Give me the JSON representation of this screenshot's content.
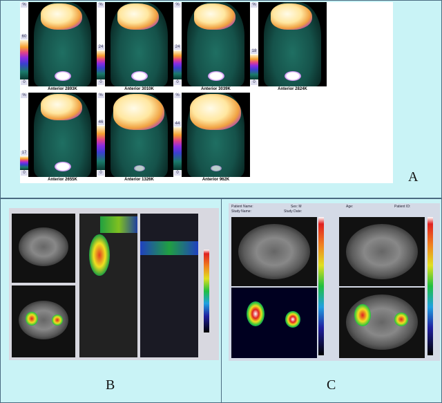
{
  "panel_a": {
    "label": "A",
    "scale_unit": "%",
    "scale_min": "0",
    "images": [
      {
        "caption": "Anterior 2893K",
        "scale_max": "60"
      },
      {
        "caption": "Anterior 3010K",
        "scale_max": "24"
      },
      {
        "caption": "Anterior 3039K",
        "scale_max": "24"
      },
      {
        "caption": "Anterior 2824K",
        "scale_max": "18"
      },
      {
        "caption": "Anterior 2655K",
        "scale_max": "17"
      },
      {
        "caption": "Anterior 1326K",
        "scale_max": "46"
      },
      {
        "caption": "Anterior 962K",
        "scale_max": "44"
      }
    ]
  },
  "panel_b": {
    "label": "B"
  },
  "panel_c": {
    "label": "C",
    "header": {
      "patient_name": "Patient Name:",
      "sex": "Sex: M",
      "age": "Age:",
      "patient_id": "Patient ID:",
      "study_name": "Study Name:",
      "study_date": "Study Date:"
    }
  }
}
